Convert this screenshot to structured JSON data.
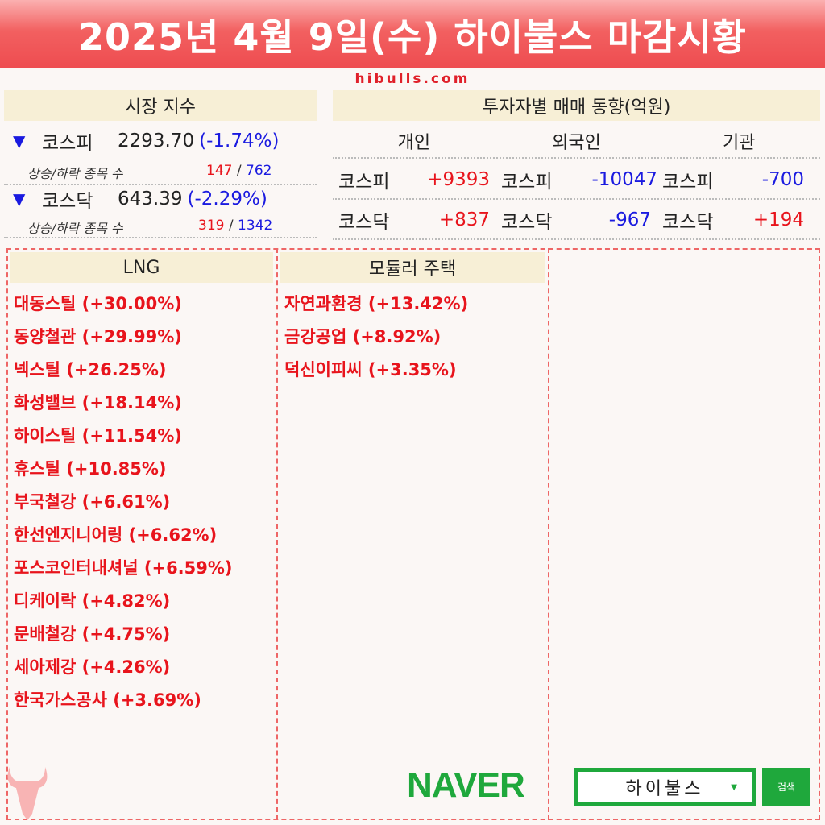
{
  "title": "2025년 4월 9일(수) 하이불스 마감시황",
  "site": "hibulls.com",
  "market": {
    "header": "시장 지수",
    "sub_label": "상승/하락 종목 수",
    "indices": [
      {
        "name": "코스피",
        "value": "2293.70",
        "change": "(-1.74%)",
        "up": "147",
        "down": "762",
        "arrow": "▼"
      },
      {
        "name": "코스닥",
        "value": "643.39",
        "change": "(-2.29%)",
        "up": "319",
        "down": "1342",
        "arrow": "▼"
      }
    ]
  },
  "investors": {
    "header": "투자자별 매매 동향(억원)",
    "columns": [
      "개인",
      "외국인",
      "기관"
    ],
    "rows": [
      {
        "cells": [
          {
            "m": "코스피",
            "v": "+9393"
          },
          {
            "m": "코스피",
            "v": "-10047"
          },
          {
            "m": "코스피",
            "v": "-700"
          }
        ]
      },
      {
        "cells": [
          {
            "m": "코스닥",
            "v": "+837"
          },
          {
            "m": "코스닥",
            "v": "-967"
          },
          {
            "m": "코스닥",
            "v": "+194"
          }
        ]
      }
    ]
  },
  "themes": [
    {
      "name": "LNG",
      "stocks": [
        "대동스틸 (+30.00%)",
        "동양철관 (+29.99%)",
        "넥스틸 (+26.25%)",
        "화성밸브 (+18.14%)",
        "하이스틸 (+11.54%)",
        "휴스틸 (+10.85%)",
        "부국철강 (+6.61%)",
        "한선엔지니어링 (+6.62%)",
        "포스코인터내셔널 (+6.59%)",
        "디케이락 (+4.82%)",
        "문배철강 (+4.75%)",
        "세아제강 (+4.26%)",
        "한국가스공사 (+3.69%)"
      ]
    },
    {
      "name": "모듈러 주택",
      "stocks": [
        "자연과환경 (+13.42%)",
        "금강공업 (+8.92%)",
        "덕신이피씨 (+3.35%)"
      ]
    }
  ],
  "search": {
    "brand": "NAVER",
    "query": "하이불스",
    "button": "검색"
  },
  "colors": {
    "up": "#e8141c",
    "down": "#1a1ae0",
    "naver": "#1fa83c",
    "header_bg": "#f7efd6"
  }
}
